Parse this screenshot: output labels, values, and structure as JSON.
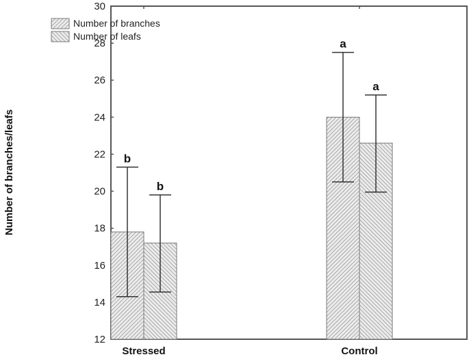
{
  "chart_data": {
    "type": "bar",
    "title": "",
    "xlabel": "",
    "ylabel": "Number of branches/leafs",
    "ylim": [
      12,
      30
    ],
    "yticks": [
      12,
      14,
      16,
      18,
      20,
      22,
      24,
      26,
      28,
      30
    ],
    "grid": false,
    "legend_position": "upper-left",
    "categories": [
      "Stressed",
      "Control"
    ],
    "series": [
      {
        "name": "Number of branches",
        "pattern": "forward-diagonal-hatch",
        "values": [
          17.8,
          24.0
        ],
        "error_low": [
          14.3,
          20.5
        ],
        "error_high": [
          21.3,
          27.5
        ],
        "significance": [
          "b",
          "a"
        ]
      },
      {
        "name": "Number of leafs",
        "pattern": "backward-diagonal-hatch",
        "values": [
          17.2,
          22.6
        ],
        "error_low": [
          14.55,
          19.95
        ],
        "error_high": [
          19.8,
          25.2
        ],
        "significance": [
          "b",
          "a"
        ]
      }
    ]
  },
  "colors": {
    "axis": "#555555",
    "bar_fill": "#e8e8e8",
    "hatch": "#8a8a8a",
    "error_bar": "#333333"
  }
}
